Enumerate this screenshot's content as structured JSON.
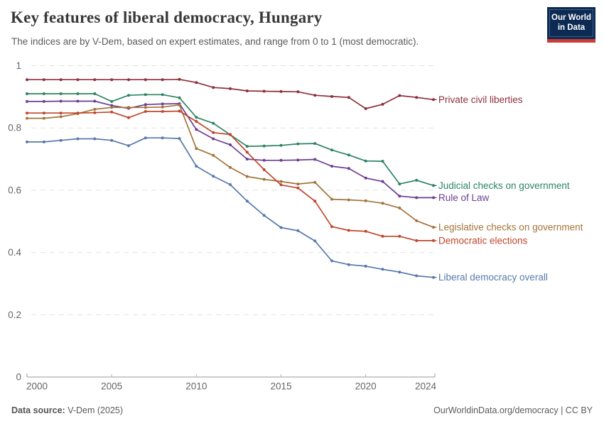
{
  "header": {
    "title": "Key features of liberal democracy, Hungary",
    "subtitle": "The indices are by V-Dem, based on expert estimates, and range from 0 to 1 (most democratic)."
  },
  "logo": {
    "line1": "Our World",
    "line2": "in Data",
    "bg_color": "#0d2b52",
    "bar_color": "#c93c37"
  },
  "footer": {
    "source_label": "Data source:",
    "source_value": " V-Dem (2025)",
    "credit": "OurWorldinData.org/democracy | CC BY"
  },
  "chart_data": {
    "type": "line",
    "title": "Key features of liberal democracy, Hungary",
    "xlabel": "",
    "ylabel": "",
    "ylim": [
      0,
      1
    ],
    "grid": "horizontal-dashed",
    "legend_position": "right-of-line-ends",
    "yticks": [
      0,
      0.2,
      0.4,
      0.6,
      0.8,
      1
    ],
    "xticks": [
      2000,
      2005,
      2010,
      2015,
      2020,
      2024
    ],
    "x": [
      2000,
      2001,
      2002,
      2003,
      2004,
      2005,
      2006,
      2007,
      2008,
      2009,
      2010,
      2011,
      2012,
      2013,
      2014,
      2015,
      2016,
      2017,
      2018,
      2019,
      2020,
      2021,
      2022,
      2023,
      2024
    ],
    "series": [
      {
        "name": "Private civil liberties",
        "color": "#8e2f3b",
        "values": [
          0.955,
          0.955,
          0.955,
          0.955,
          0.955,
          0.955,
          0.955,
          0.955,
          0.955,
          0.956,
          0.946,
          0.93,
          0.926,
          0.919,
          0.918,
          0.917,
          0.916,
          0.905,
          0.901,
          0.898,
          0.862,
          0.876,
          0.904,
          0.898,
          0.891
        ]
      },
      {
        "name": "Judicial checks on government",
        "color": "#2c8465",
        "values": [
          0.91,
          0.91,
          0.91,
          0.91,
          0.91,
          0.885,
          0.905,
          0.907,
          0.907,
          0.897,
          0.834,
          0.815,
          0.778,
          0.741,
          0.742,
          0.744,
          0.749,
          0.75,
          0.729,
          0.713,
          0.694,
          0.693,
          0.62,
          0.632,
          0.615
        ]
      },
      {
        "name": "Rule of Law",
        "color": "#6d3e91",
        "values": [
          0.885,
          0.885,
          0.886,
          0.886,
          0.886,
          0.872,
          0.863,
          0.875,
          0.877,
          0.878,
          0.795,
          0.765,
          0.746,
          0.7,
          0.696,
          0.696,
          0.697,
          0.699,
          0.677,
          0.67,
          0.639,
          0.628,
          0.581,
          0.576,
          0.576
        ]
      },
      {
        "name": "Legislative checks on government",
        "color": "#a3743b",
        "values": [
          0.831,
          0.831,
          0.836,
          0.846,
          0.86,
          0.866,
          0.866,
          0.866,
          0.867,
          0.874,
          0.734,
          0.712,
          0.673,
          0.644,
          0.635,
          0.628,
          0.62,
          0.625,
          0.571,
          0.569,
          0.566,
          0.558,
          0.543,
          0.502,
          0.481
        ]
      },
      {
        "name": "Democratic elections",
        "color": "#c0462c",
        "values": [
          0.848,
          0.848,
          0.848,
          0.848,
          0.849,
          0.851,
          0.833,
          0.853,
          0.853,
          0.854,
          0.821,
          0.785,
          0.779,
          0.722,
          0.666,
          0.617,
          0.607,
          0.565,
          0.483,
          0.471,
          0.468,
          0.452,
          0.452,
          0.438,
          0.438
        ]
      },
      {
        "name": "Liberal democracy overall",
        "color": "#5879ac",
        "values": [
          0.755,
          0.755,
          0.76,
          0.765,
          0.765,
          0.76,
          0.743,
          0.768,
          0.768,
          0.766,
          0.677,
          0.645,
          0.618,
          0.565,
          0.519,
          0.48,
          0.47,
          0.437,
          0.373,
          0.361,
          0.356,
          0.346,
          0.337,
          0.325,
          0.32
        ]
      }
    ]
  }
}
